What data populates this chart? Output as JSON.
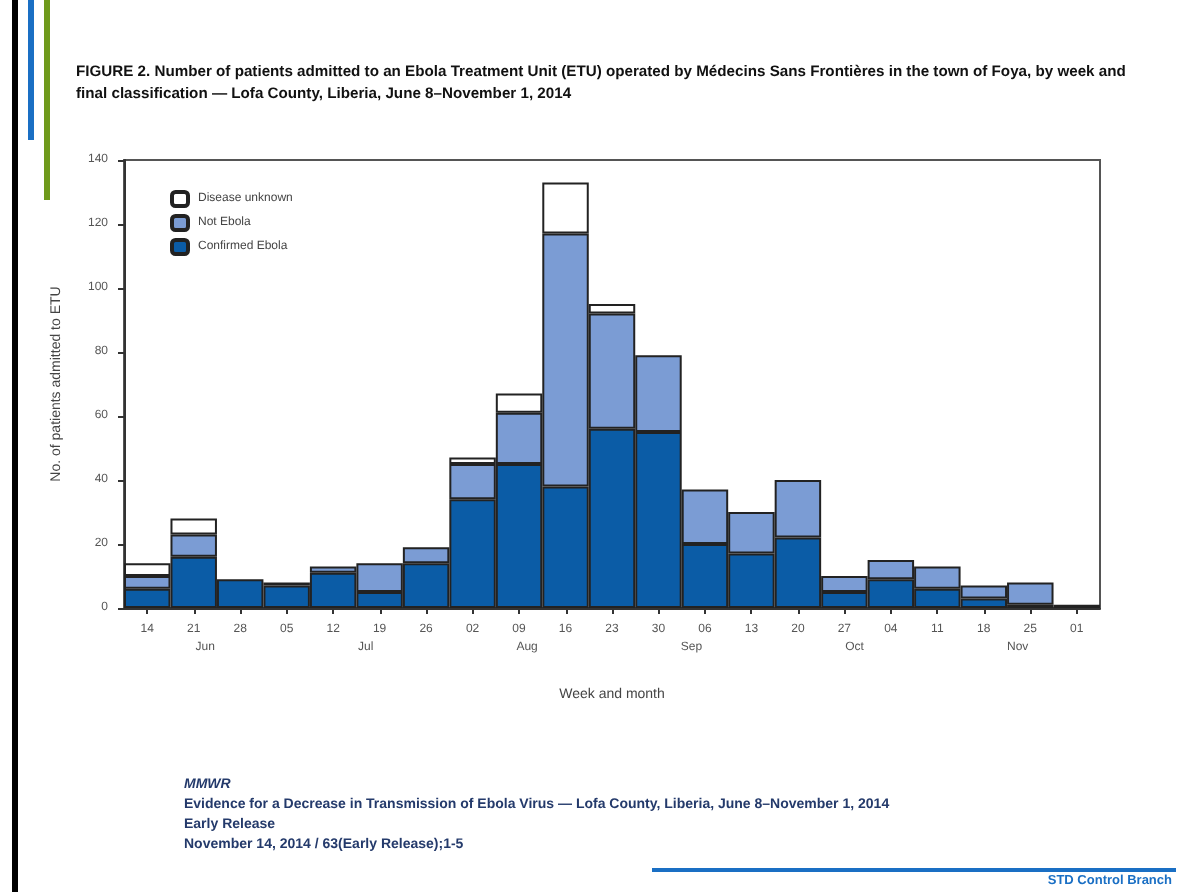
{
  "chart_data": {
    "type": "bar",
    "title": "FIGURE 2. Number of patients admitted to an Ebola Treatment Unit (ETU) operated by Médecins Sans Frontières in the town of Foya, by week and final classification — Lofa County, Liberia, June 8–November 1, 2014",
    "xlabel": "Week and month",
    "ylabel": "No. of patients admitted to ETU",
    "categories": [
      "14",
      "21",
      "28",
      "05",
      "12",
      "19",
      "26",
      "02",
      "09",
      "16",
      "23",
      "30",
      "06",
      "13",
      "20",
      "27",
      "04",
      "11",
      "18",
      "25",
      "01"
    ],
    "stacked": true,
    "series": [
      {
        "name": "Confirmed Ebola",
        "color": "#0b5ca6",
        "values": [
          6,
          16,
          9,
          7,
          11,
          5,
          14,
          34,
          45,
          38,
          56,
          55,
          20,
          17,
          22,
          5,
          9,
          6,
          3,
          1,
          1
        ]
      },
      {
        "name": "Not Ebola",
        "color": "#7b9cd4",
        "values": [
          4,
          7,
          0,
          1,
          2,
          9,
          5,
          11,
          16,
          79,
          36,
          24,
          17,
          13,
          18,
          5,
          6,
          7,
          4,
          7,
          0
        ]
      },
      {
        "name": "Disease unknown",
        "color": "#ffffff",
        "values": [
          4,
          5,
          0,
          0,
          0,
          0,
          0,
          2,
          6,
          16,
          3,
          0,
          0,
          0,
          0,
          0,
          0,
          0,
          0,
          0,
          0
        ]
      }
    ],
    "ylim": [
      0,
      140
    ],
    "yticks": [
      0,
      20,
      40,
      60,
      80,
      100,
      120,
      140
    ],
    "grid": false,
    "legend": "top left",
    "annotations": [
      "Jun",
      "Jul",
      "Aug",
      "Sep",
      "Oct",
      "Nov",
      "MMWR",
      "Evidence for a Decrease in Transmission of Ebola Virus — Lofa County, Liberia, June 8–November 1, 2014",
      "Early Release",
      "November 14, 2014 / 63(Early Release);1-5",
      "STD Control Branch"
    ]
  }
}
